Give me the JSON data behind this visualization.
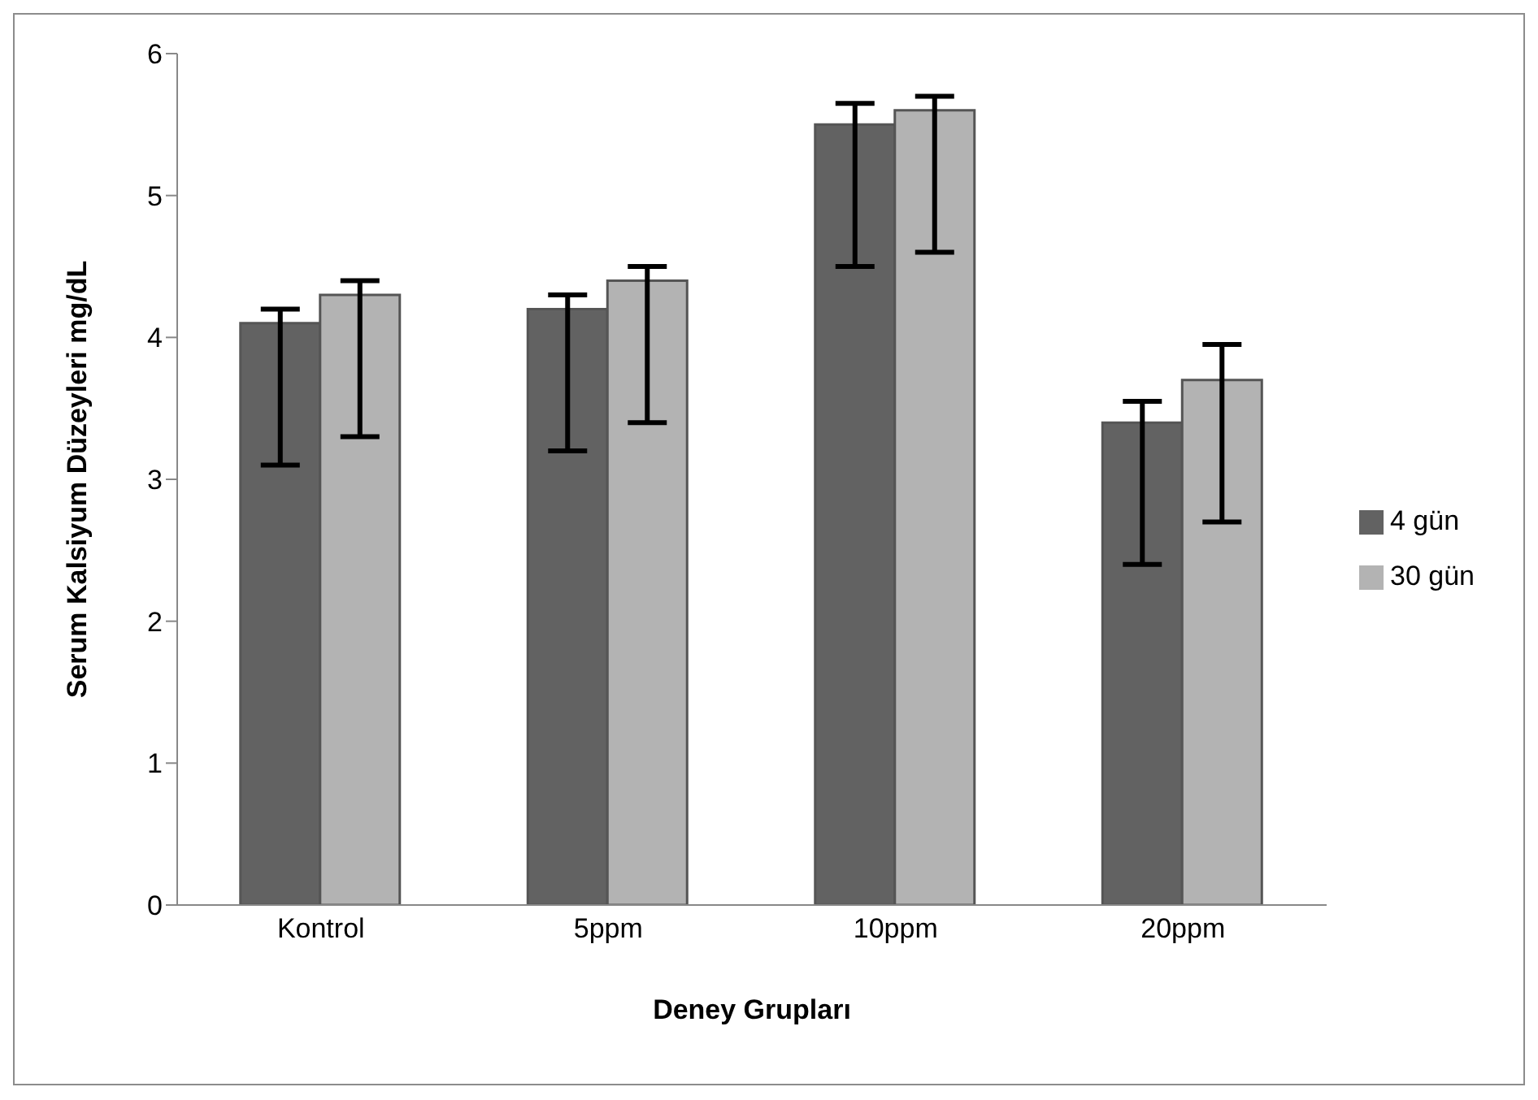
{
  "chart_data": {
    "type": "bar",
    "xlabel": "Deney Grupları",
    "ylabel": "Serum Kalsiyum Düzeyleri mg/dL",
    "categories": [
      "Kontrol",
      "5ppm",
      "10ppm",
      "20ppm"
    ],
    "series": [
      {
        "name": "4 gün",
        "color": "#626262",
        "values": [
          4.1,
          4.2,
          5.5,
          3.4
        ],
        "errors": [
          [
            3.1,
            4.2
          ],
          [
            3.2,
            4.3
          ],
          [
            4.5,
            5.65
          ],
          [
            2.4,
            3.55
          ]
        ]
      },
      {
        "name": "30 gün",
        "color": "#b3b3b3",
        "values": [
          4.3,
          4.4,
          5.6,
          3.7
        ],
        "errors": [
          [
            3.3,
            4.4
          ],
          [
            3.4,
            4.5
          ],
          [
            4.6,
            5.7
          ],
          [
            2.7,
            3.95
          ]
        ]
      }
    ],
    "ylim": [
      0,
      6
    ],
    "yticks": [
      0,
      1,
      2,
      3,
      4,
      5,
      6
    ],
    "grid": false,
    "legend": "right"
  }
}
